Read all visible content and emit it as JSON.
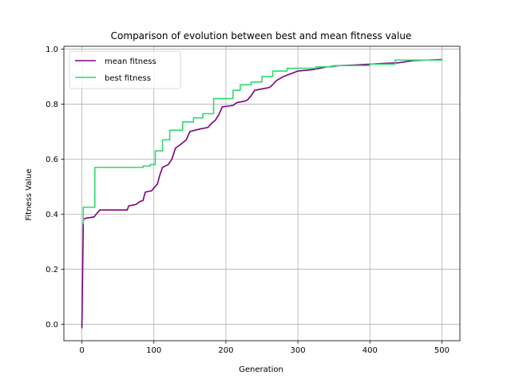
{
  "chart_data": {
    "type": "line",
    "title": "Comparison of evolution between best and mean fitness value",
    "xlabel": "Generation",
    "ylabel": "Fitness Value",
    "xlim": [
      -25,
      525
    ],
    "ylim": [
      -0.06,
      1.01
    ],
    "xticks": [
      0,
      100,
      200,
      300,
      400,
      500
    ],
    "yticks": [
      0.0,
      0.2,
      0.4,
      0.6,
      0.8,
      1.0
    ],
    "xtick_labels": [
      "0",
      "100",
      "200",
      "300",
      "400",
      "500"
    ],
    "ytick_labels": [
      "0.0",
      "0.2",
      "0.4",
      "0.6",
      "0.8",
      "1.0"
    ],
    "grid": true,
    "legend_position": "upper-left",
    "series": [
      {
        "name": "mean fitness",
        "color": "#7d007d",
        "steps": false,
        "points": [
          [
            0,
            -0.015
          ],
          [
            2,
            0.38
          ],
          [
            5,
            0.385
          ],
          [
            17,
            0.39
          ],
          [
            20,
            0.4
          ],
          [
            25,
            0.415
          ],
          [
            63,
            0.415
          ],
          [
            65,
            0.43
          ],
          [
            75,
            0.435
          ],
          [
            80,
            0.445
          ],
          [
            85,
            0.45
          ],
          [
            88,
            0.48
          ],
          [
            97,
            0.485
          ],
          [
            100,
            0.495
          ],
          [
            105,
            0.51
          ],
          [
            108,
            0.54
          ],
          [
            112,
            0.57
          ],
          [
            120,
            0.58
          ],
          [
            125,
            0.6
          ],
          [
            130,
            0.64
          ],
          [
            138,
            0.655
          ],
          [
            145,
            0.67
          ],
          [
            150,
            0.7
          ],
          [
            165,
            0.71
          ],
          [
            175,
            0.715
          ],
          [
            180,
            0.73
          ],
          [
            185,
            0.74
          ],
          [
            190,
            0.76
          ],
          [
            195,
            0.79
          ],
          [
            210,
            0.795
          ],
          [
            215,
            0.805
          ],
          [
            225,
            0.81
          ],
          [
            230,
            0.815
          ],
          [
            235,
            0.83
          ],
          [
            240,
            0.85
          ],
          [
            250,
            0.855
          ],
          [
            260,
            0.86
          ],
          [
            265,
            0.87
          ],
          [
            270,
            0.885
          ],
          [
            280,
            0.9
          ],
          [
            290,
            0.91
          ],
          [
            300,
            0.92
          ],
          [
            320,
            0.925
          ],
          [
            340,
            0.935
          ],
          [
            360,
            0.94
          ],
          [
            380,
            0.942
          ],
          [
            400,
            0.945
          ],
          [
            420,
            0.948
          ],
          [
            440,
            0.95
          ],
          [
            460,
            0.958
          ],
          [
            480,
            0.96
          ],
          [
            500,
            0.962
          ]
        ]
      },
      {
        "name": "best fitness",
        "color": "#2edb6f",
        "steps": true,
        "points": [
          [
            0,
            0.365
          ],
          [
            2,
            0.425
          ],
          [
            18,
            0.57
          ],
          [
            85,
            0.575
          ],
          [
            95,
            0.58
          ],
          [
            102,
            0.63
          ],
          [
            112,
            0.67
          ],
          [
            122,
            0.705
          ],
          [
            140,
            0.735
          ],
          [
            155,
            0.75
          ],
          [
            168,
            0.765
          ],
          [
            183,
            0.82
          ],
          [
            210,
            0.85
          ],
          [
            220,
            0.87
          ],
          [
            235,
            0.88
          ],
          [
            250,
            0.9
          ],
          [
            265,
            0.92
          ],
          [
            285,
            0.93
          ],
          [
            325,
            0.935
          ],
          [
            350,
            0.94
          ],
          [
            400,
            0.945
          ],
          [
            435,
            0.96
          ],
          [
            500,
            0.962
          ]
        ]
      }
    ]
  }
}
